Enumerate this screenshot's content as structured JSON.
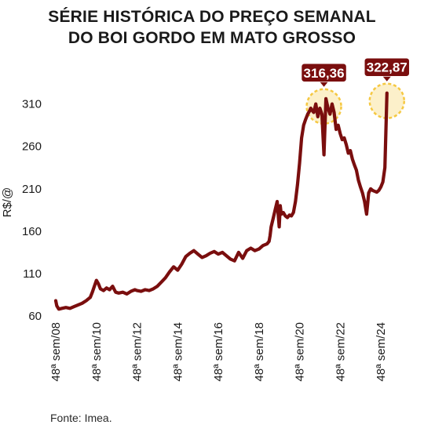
{
  "title_line1": "SÉRIE HISTÓRICA DO PREÇO SEMANAL",
  "title_line2": "DO BOI GORDO EM MATO GROSSO",
  "source": "Fonte: Imea.",
  "colors": {
    "line": "#7a0e0e",
    "label_bg": "#7a0e0e",
    "label_text": "#ffffff",
    "highlight": "#f5c842"
  },
  "chart_data": {
    "type": "line",
    "title": "SÉRIE HISTÓRICA DO PREÇO SEMANAL DO BOI GORDO EM MATO GROSSO",
    "xlabel": "",
    "ylabel": "R$/@",
    "ylim": [
      60,
      330
    ],
    "yticks": [
      60,
      110,
      160,
      210,
      260,
      310
    ],
    "xlim": [
      2008,
      2024
    ],
    "xticks": [
      {
        "x": 2008,
        "label": "48ª sem/08"
      },
      {
        "x": 2010,
        "label": "48ª sem/10"
      },
      {
        "x": 2012,
        "label": "48ª sem/12"
      },
      {
        "x": 2014,
        "label": "48ª sem/14"
      },
      {
        "x": 2016,
        "label": "48ª sem/16"
      },
      {
        "x": 2018,
        "label": "48ª sem/18"
      },
      {
        "x": 2020,
        "label": "48ª sem/20"
      },
      {
        "x": 2022,
        "label": "48ª sem/22"
      },
      {
        "x": 2024,
        "label": "48ª sem/24"
      }
    ],
    "grid": false,
    "series": [
      {
        "x": [
          2008.0,
          2008.05,
          2008.15,
          2008.3,
          2008.5,
          2008.7,
          2008.9,
          2009.1,
          2009.3,
          2009.5,
          2009.7,
          2009.8,
          2009.9,
          2010.0,
          2010.1,
          2010.2,
          2010.35,
          2010.5,
          2010.65,
          2010.8,
          2010.95,
          2011.1,
          2011.3,
          2011.5,
          2011.7,
          2011.9,
          2012.0,
          2012.2,
          2012.4,
          2012.6,
          2012.8,
          2013.0,
          2013.2,
          2013.4,
          2013.6,
          2013.8,
          2014.0,
          2014.2,
          2014.4,
          2014.6,
          2014.8,
          2015.0,
          2015.2,
          2015.4,
          2015.6,
          2015.8,
          2016.0,
          2016.2,
          2016.4,
          2016.6,
          2016.8,
          2017.0,
          2017.2,
          2017.4,
          2017.6,
          2017.8,
          2018.0,
          2018.2,
          2018.4,
          2018.5,
          2018.55,
          2018.6,
          2018.7,
          2018.8,
          2018.9,
          2019.0,
          2019.05,
          2019.1,
          2019.2,
          2019.3,
          2019.4,
          2019.5,
          2019.6,
          2019.7,
          2019.8,
          2019.9,
          2020.0,
          2020.1,
          2020.2,
          2020.3,
          2020.4,
          2020.5,
          2020.55,
          2020.6,
          2020.7,
          2020.8,
          2020.9,
          2021.0,
          2021.1,
          2021.2,
          2021.3,
          2021.4,
          2021.5,
          2021.6,
          2021.7,
          2021.8,
          2021.9,
          2022.0,
          2022.1,
          2022.2,
          2022.3,
          2022.4,
          2022.5,
          2022.6,
          2022.7,
          2022.8,
          2022.9,
          2023.0,
          2023.1,
          2023.2,
          2023.3,
          2023.35,
          2023.4,
          2023.5,
          2023.6,
          2023.7,
          2023.8,
          2023.9,
          2024.0,
          2024.1,
          2024.2,
          2024.3
        ],
        "values": [
          78,
          72,
          68,
          69,
          70,
          69,
          71,
          73,
          75,
          78,
          82,
          88,
          95,
          102,
          98,
          92,
          90,
          93,
          91,
          95,
          88,
          87,
          88,
          86,
          89,
          91,
          90,
          89,
          91,
          90,
          92,
          95,
          100,
          105,
          112,
          118,
          114,
          121,
          130,
          134,
          137,
          133,
          129,
          131,
          134,
          136,
          133,
          135,
          131,
          127,
          125,
          135,
          128,
          137,
          140,
          137,
          139,
          143,
          145,
          148,
          155,
          165,
          175,
          185,
          195,
          165,
          190,
          180,
          182,
          178,
          176,
          179,
          178,
          182,
          195,
          215,
          240,
          270,
          285,
          292,
          298,
          302,
          305,
          303,
          300,
          310,
          295,
          305,
          298,
          250,
          316.36,
          305,
          298,
          310,
          300,
          280,
          285,
          275,
          268,
          270,
          262,
          252,
          255,
          245,
          238,
          232,
          220,
          212,
          205,
          195,
          180,
          192,
          205,
          210,
          208,
          207,
          206,
          208,
          212,
          218,
          235,
          322.87
        ]
      }
    ],
    "annotations": [
      {
        "label": "316,36",
        "x": 2021.2,
        "y": 316.36
      },
      {
        "label": "322,87",
        "x": 2024.3,
        "y": 322.87
      }
    ]
  }
}
